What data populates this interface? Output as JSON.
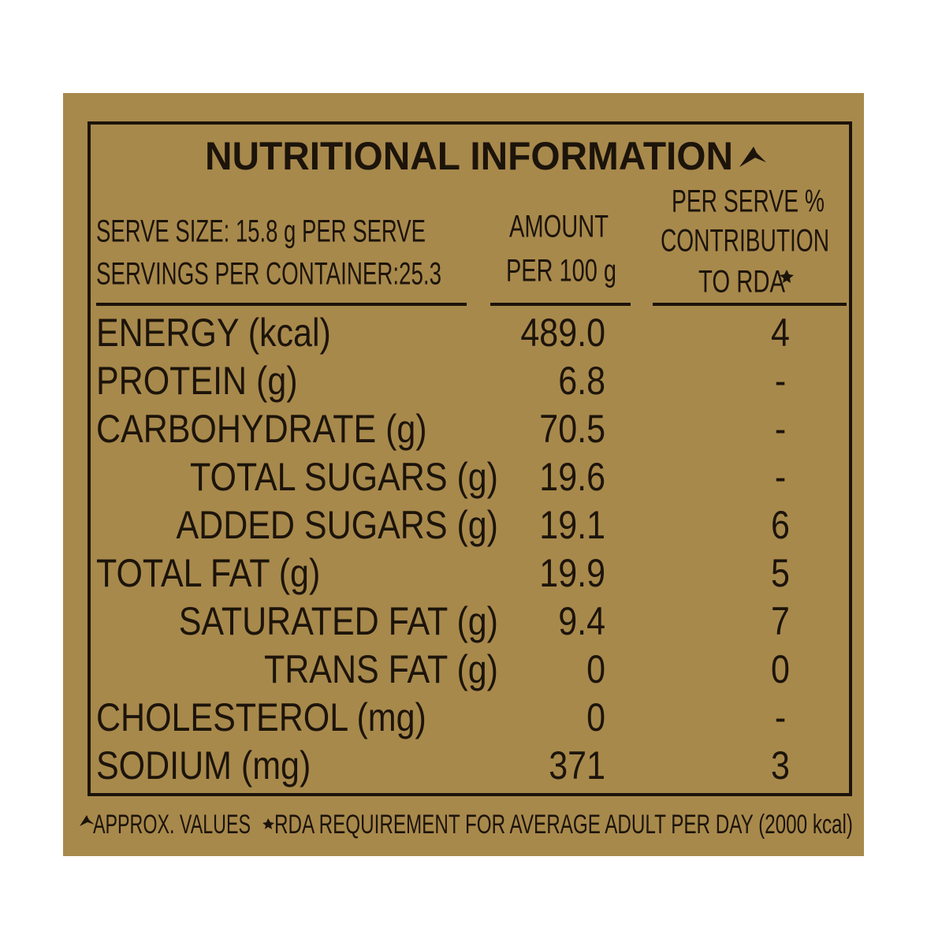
{
  "header": {
    "title": "NUTRITIONAL INFORMATION",
    "serve_size": "SERVE SIZE: 15.8 g PER SERVE",
    "servings": "SERVINGS PER CONTAINER:25.3",
    "amount_heading": [
      "AMOUNT",
      "PER 100 g"
    ],
    "rda_heading": [
      "PER SERVE %",
      "CONTRIBUTION",
      "TO RDA"
    ]
  },
  "table": {
    "rows": [
      [
        "ENERGY (kcal)",
        "489.0",
        "4"
      ],
      [
        "PROTEIN (g)",
        "6.8",
        "-"
      ],
      [
        "CARBOHYDRATE (g)",
        "70.5",
        "-"
      ],
      [
        "TOTAL SUGARS (g)",
        "19.6",
        "-"
      ],
      [
        "ADDED SUGARS (g)",
        "19.1",
        "6"
      ],
      [
        "TOTAL FAT (g)",
        "19.9",
        "5"
      ],
      [
        "SATURATED FAT (g)",
        "9.4",
        "7"
      ],
      [
        "TRANS FAT (g)",
        "0",
        "0"
      ],
      [
        "CHOLESTEROL (mg)",
        "0",
        "-"
      ],
      [
        "SODIUM (mg)",
        "371",
        "3"
      ]
    ]
  },
  "footer": {
    "approx": "APPROX. VALUES",
    "rda": "RDA REQUIREMENT FOR AVERAGE ADULT PER DAY (2000 kcal)"
  }
}
